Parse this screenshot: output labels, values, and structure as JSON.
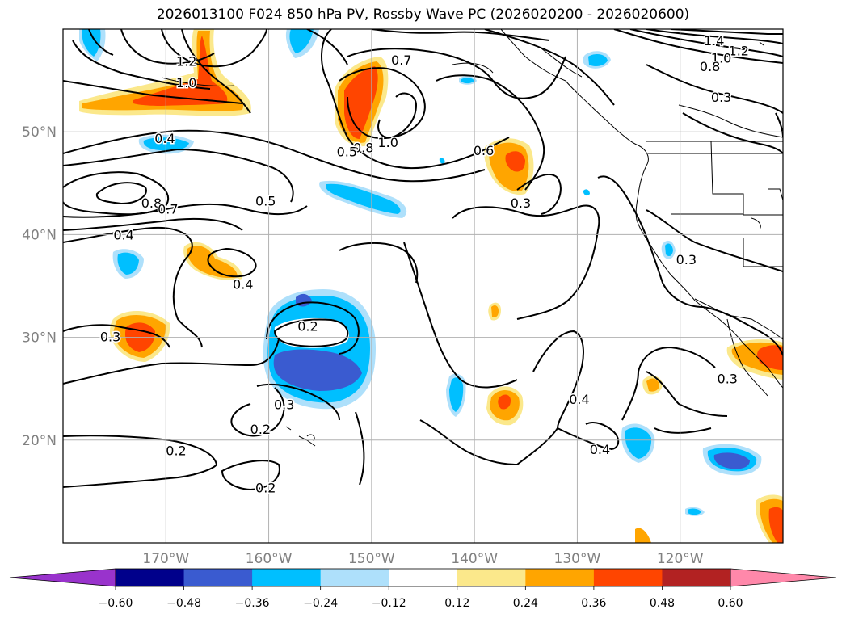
{
  "title": "2026013100 F024 850 hPa PV, Rossby Wave PC (2026020200 - 2026020600)",
  "map": {
    "lon_range": [
      -180,
      -110
    ],
    "lat_range": [
      10,
      60
    ],
    "lon_ticks": [
      {
        "lon": -170,
        "label": "170°W"
      },
      {
        "lon": -160,
        "label": "160°W"
      },
      {
        "lon": -150,
        "label": "150°W"
      },
      {
        "lon": -140,
        "label": "140°W"
      },
      {
        "lon": -130,
        "label": "130°W"
      },
      {
        "lon": -120,
        "label": "120°W"
      }
    ],
    "lat_ticks": [
      {
        "lat": 50,
        "label": "50°N"
      },
      {
        "lat": 40,
        "label": "40°N"
      },
      {
        "lat": 30,
        "label": "30°N"
      },
      {
        "lat": 20,
        "label": "20°N"
      }
    ],
    "grid": true
  },
  "contour_labels": [
    {
      "text": "1.2",
      "lon": -168.0,
      "lat": 56.9
    },
    {
      "text": "1.0",
      "lon": -168.0,
      "lat": 54.8
    },
    {
      "text": "0.7",
      "lon": -147.1,
      "lat": 57.0
    },
    {
      "text": "1.4",
      "lon": -116.7,
      "lat": 58.9
    },
    {
      "text": "1.2",
      "lon": -114.3,
      "lat": 57.9
    },
    {
      "text": "1.0",
      "lon": -116.0,
      "lat": 57.2
    },
    {
      "text": "0.8",
      "lon": -117.1,
      "lat": 56.4
    },
    {
      "text": "0.3",
      "lon": -116.0,
      "lat": 53.4
    },
    {
      "text": "0.4",
      "lon": -170.1,
      "lat": 49.4
    },
    {
      "text": "1.0",
      "lon": -148.4,
      "lat": 49.0
    },
    {
      "text": "0.8",
      "lon": -150.8,
      "lat": 48.5
    },
    {
      "text": "0.5",
      "lon": -152.4,
      "lat": 48.1
    },
    {
      "text": "0.6",
      "lon": -139.1,
      "lat": 48.2
    },
    {
      "text": "0.8",
      "lon": -171.4,
      "lat": 43.1
    },
    {
      "text": "0.7",
      "lon": -169.8,
      "lat": 42.5
    },
    {
      "text": "0.5",
      "lon": -160.3,
      "lat": 43.3
    },
    {
      "text": "0.3",
      "lon": -135.5,
      "lat": 43.1
    },
    {
      "text": "0.4",
      "lon": -174.1,
      "lat": 40.0
    },
    {
      "text": "0.3",
      "lon": -119.4,
      "lat": 37.6
    },
    {
      "text": "0.4",
      "lon": -162.5,
      "lat": 35.2
    },
    {
      "text": "0.2",
      "lon": -156.2,
      "lat": 31.1
    },
    {
      "text": "0.3",
      "lon": -175.4,
      "lat": 30.1
    },
    {
      "text": "0.3",
      "lon": -115.4,
      "lat": 26.0
    },
    {
      "text": "0.3",
      "lon": -158.5,
      "lat": 23.5
    },
    {
      "text": "0.4",
      "lon": -129.8,
      "lat": 24.0
    },
    {
      "text": "0.2",
      "lon": -160.8,
      "lat": 21.1
    },
    {
      "text": "0.4",
      "lon": -127.8,
      "lat": 19.1
    },
    {
      "text": "0.2",
      "lon": -169.0,
      "lat": 19.0
    },
    {
      "text": "0.2",
      "lon": -160.3,
      "lat": 15.4
    }
  ],
  "colorbar": {
    "colors": [
      "#9933cc",
      "#00008b",
      "#3a5bd0",
      "#00bfff",
      "#aee0fb",
      "#ffffff",
      "#fbe88b",
      "#ffa500",
      "#ff4500",
      "#b22222",
      "#ff88aa"
    ],
    "tick_labels": [
      "−0.60",
      "−0.48",
      "−0.36",
      "−0.24",
      "−0.12",
      "0.12",
      "0.24",
      "0.36",
      "0.48",
      "0.60"
    ],
    "extend": "both"
  }
}
